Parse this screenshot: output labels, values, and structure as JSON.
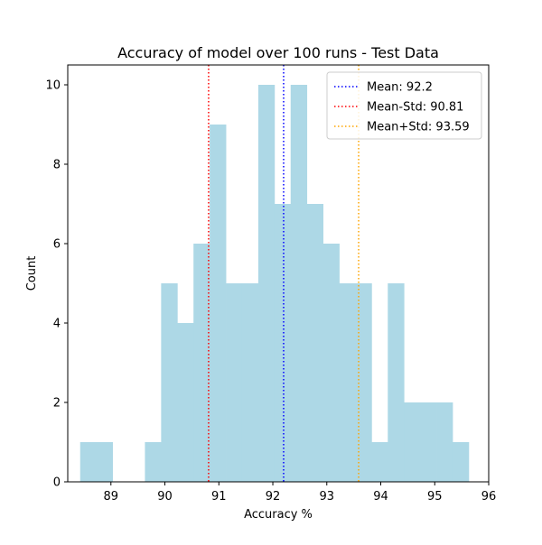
{
  "chart_data": {
    "type": "bar",
    "title": "Accuracy of model over 100 runs - Test Data",
    "xlabel": "Accuracy %",
    "ylabel": "Count",
    "xlim": [
      88.2,
      96.0
    ],
    "ylim": [
      0,
      10.5
    ],
    "xticks": [
      89,
      90,
      91,
      92,
      93,
      94,
      95,
      96
    ],
    "yticks": [
      0,
      2,
      4,
      6,
      8,
      10
    ],
    "grid": false,
    "bar_color": "#add8e6",
    "bins": [
      {
        "x0": 88.43,
        "x1": 88.73,
        "count": 1
      },
      {
        "x0": 88.73,
        "x1": 89.03,
        "count": 1
      },
      {
        "x0": 89.03,
        "x1": 89.33,
        "count": 0
      },
      {
        "x0": 89.33,
        "x1": 89.63,
        "count": 0
      },
      {
        "x0": 89.63,
        "x1": 89.93,
        "count": 1
      },
      {
        "x0": 89.93,
        "x1": 90.23,
        "count": 5
      },
      {
        "x0": 90.23,
        "x1": 90.53,
        "count": 4
      },
      {
        "x0": 90.53,
        "x1": 90.83,
        "count": 6
      },
      {
        "x0": 90.83,
        "x1": 91.13,
        "count": 9
      },
      {
        "x0": 91.13,
        "x1": 91.43,
        "count": 5
      },
      {
        "x0": 91.43,
        "x1": 91.73,
        "count": 5
      },
      {
        "x0": 91.73,
        "x1": 92.03,
        "count": 10
      },
      {
        "x0": 92.03,
        "x1": 92.33,
        "count": 7
      },
      {
        "x0": 92.33,
        "x1": 92.63,
        "count": 10
      },
      {
        "x0": 92.63,
        "x1": 92.93,
        "count": 7
      },
      {
        "x0": 92.93,
        "x1": 93.23,
        "count": 6
      },
      {
        "x0": 93.23,
        "x1": 93.53,
        "count": 5
      },
      {
        "x0": 93.53,
        "x1": 93.83,
        "count": 5
      },
      {
        "x0": 93.83,
        "x1": 94.13,
        "count": 1
      },
      {
        "x0": 94.13,
        "x1": 94.43,
        "count": 5
      },
      {
        "x0": 94.43,
        "x1": 94.73,
        "count": 2
      },
      {
        "x0": 94.73,
        "x1": 95.03,
        "count": 2
      },
      {
        "x0": 95.03,
        "x1": 95.33,
        "count": 2
      },
      {
        "x0": 95.33,
        "x1": 95.63,
        "count": 1
      }
    ],
    "vlines": [
      {
        "label": "Mean: 92.2",
        "x": 92.2,
        "color": "#0000ff"
      },
      {
        "label": "Mean-Std: 90.81",
        "x": 90.81,
        "color": "#ff0000"
      },
      {
        "label": "Mean+Std: 93.59",
        "x": 93.59,
        "color": "#ffa500"
      }
    ],
    "legend_position": "top-right"
  }
}
